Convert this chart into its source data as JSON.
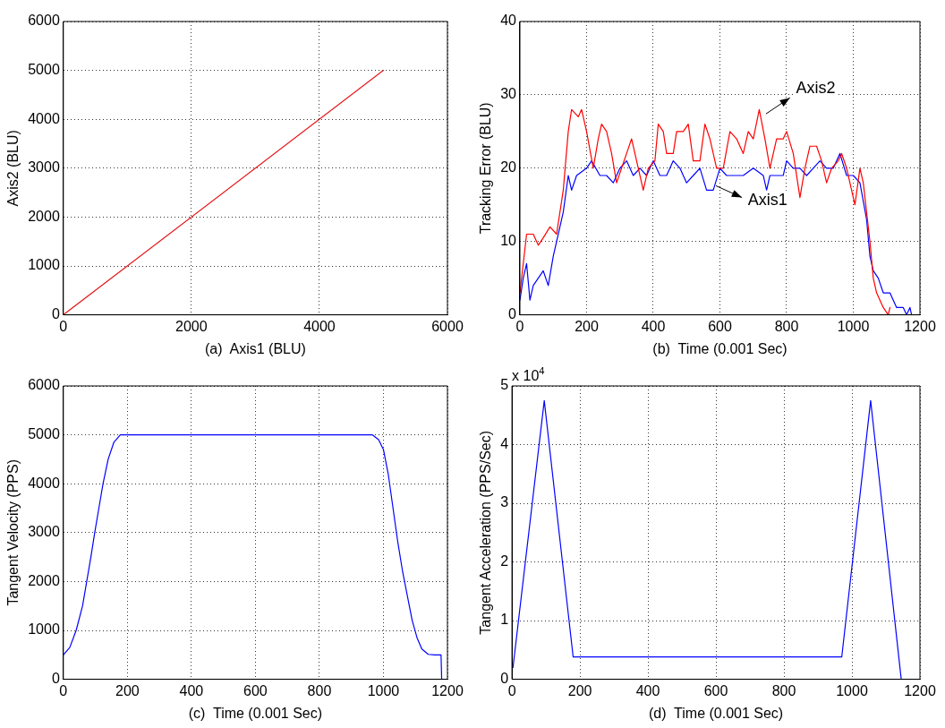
{
  "chart_data": [
    {
      "type": "line",
      "xlabel": "(a)  Axis1 (BLU)",
      "ylabel": "Axis2 (BLU)",
      "xlim": [
        0,
        6000
      ],
      "xticks": [
        0,
        2000,
        4000,
        6000
      ],
      "ylim": [
        0,
        6000
      ],
      "yticks": [
        0,
        1000,
        2000,
        3000,
        4000,
        5000,
        6000
      ],
      "grid": true,
      "series": [
        {
          "color": "#e41a1c",
          "x": [
            0,
            5000
          ],
          "values": [
            0,
            5000
          ]
        }
      ]
    },
    {
      "type": "line",
      "xlabel": "(b)  Time (0.001 Sec)",
      "ylabel": "Tracking Error (BLU)",
      "xlim": [
        0,
        1200
      ],
      "xticks": [
        0,
        200,
        400,
        600,
        800,
        1000,
        1200
      ],
      "ylim": [
        0,
        40
      ],
      "yticks": [
        0,
        10,
        20,
        30,
        40
      ],
      "grid": true,
      "series": [
        {
          "name": "Axis2",
          "color": "#ff0000",
          "x": [
            0,
            10,
            20,
            40,
            55,
            70,
            90,
            110,
            130,
            145,
            155,
            175,
            185,
            200,
            220,
            235,
            245,
            260,
            275,
            290,
            305,
            320,
            335,
            350,
            370,
            385,
            405,
            415,
            430,
            440,
            460,
            470,
            490,
            505,
            520,
            540,
            555,
            570,
            590,
            610,
            630,
            650,
            670,
            685,
            700,
            718,
            735,
            750,
            770,
            790,
            800,
            820,
            840,
            855,
            870,
            890,
            905,
            920,
            935,
            955,
            965,
            980,
            995,
            1005,
            1020,
            1030,
            1050,
            1060,
            1070,
            1090,
            1105,
            1110
          ],
          "values": [
            3,
            7,
            11,
            11,
            9.5,
            10.5,
            12,
            11,
            17,
            25,
            28,
            27,
            28,
            25,
            20,
            24,
            26,
            25,
            22,
            18,
            20,
            22,
            24,
            21,
            17,
            20,
            21,
            26,
            25,
            22,
            22,
            25,
            25,
            26,
            21,
            21,
            26,
            24,
            20,
            20,
            25,
            24,
            22,
            25,
            24,
            28,
            24,
            20,
            24,
            24,
            25,
            22,
            16,
            20,
            23,
            23,
            21,
            18,
            20,
            21,
            22,
            20,
            17,
            15,
            20,
            18,
            10,
            5,
            3,
            1,
            0,
            1
          ]
        },
        {
          "name": "Axis1",
          "color": "#0000ff",
          "x": [
            0,
            10,
            20,
            30,
            40,
            55,
            70,
            85,
            100,
            115,
            130,
            145,
            155,
            170,
            200,
            215,
            240,
            260,
            280,
            300,
            320,
            340,
            360,
            380,
            400,
            420,
            440,
            460,
            480,
            500,
            520,
            540,
            560,
            580,
            600,
            620,
            650,
            670,
            700,
            730,
            740,
            750,
            790,
            800,
            820,
            840,
            860,
            880,
            900,
            920,
            940,
            960,
            980,
            1000,
            1020,
            1040,
            1050,
            1060,
            1075,
            1090,
            1110,
            1130,
            1150,
            1160,
            1170,
            1175
          ],
          "values": [
            2,
            5,
            7,
            2,
            4,
            5,
            6,
            4,
            8,
            11,
            14,
            19,
            17,
            19,
            20,
            21,
            19,
            19,
            18,
            20,
            21,
            19,
            20,
            19,
            21,
            19,
            19,
            21,
            20,
            18,
            19,
            20,
            17,
            17,
            20,
            19,
            19,
            19,
            20,
            19,
            17,
            19,
            19,
            21,
            20,
            20,
            19,
            20,
            21,
            20,
            20,
            22,
            19,
            19,
            18,
            13,
            8,
            6,
            5,
            3,
            3,
            1,
            1,
            0,
            1,
            0
          ]
        }
      ]
    },
    {
      "type": "line",
      "xlabel": "(c)  Time (0.001 Sec)",
      "ylabel": "Tangent Velocity (PPS)",
      "xlim": [
        0,
        1200
      ],
      "xticks": [
        0,
        200,
        400,
        600,
        800,
        1000,
        1200
      ],
      "ylim": [
        0,
        6000
      ],
      "yticks": [
        0,
        1000,
        2000,
        3000,
        4000,
        5000,
        6000
      ],
      "grid": true,
      "series": [
        {
          "color": "#0000ff",
          "x": [
            0,
            20,
            40,
            60,
            73,
            86,
            98,
            111,
            124,
            140,
            158,
            178,
            965,
            985,
            1000,
            1015,
            1030,
            1045,
            1060,
            1075,
            1090,
            1105,
            1120,
            1140,
            1160,
            1180,
            1182
          ],
          "values": [
            500,
            650,
            1000,
            1500,
            2000,
            2500,
            3000,
            3500,
            4000,
            4500,
            4850,
            5000,
            5000,
            4900,
            4700,
            4200,
            3500,
            2800,
            2200,
            1700,
            1200,
            850,
            620,
            510,
            500,
            500,
            0
          ]
        }
      ]
    },
    {
      "type": "line",
      "xlabel": "(d)  Time (0.001 Sec)",
      "ylabel": "Tangent Acceleration (PPS/Sec)",
      "annotations": [
        "x 10$^{4}$"
      ],
      "xlim": [
        0,
        1200
      ],
      "xticks": [
        0,
        200,
        400,
        600,
        800,
        1000,
        1200
      ],
      "ylim": [
        0,
        5
      ],
      "yticks": [
        0,
        1,
        2,
        3,
        4,
        5
      ],
      "grid": true,
      "series": [
        {
          "color": "#0000ff",
          "x": [
            3,
            95,
            180,
            970,
            1055,
            1145
          ],
          "values": [
            0.2,
            4.75,
            0.38,
            0.38,
            4.75,
            0
          ]
        }
      ]
    }
  ]
}
